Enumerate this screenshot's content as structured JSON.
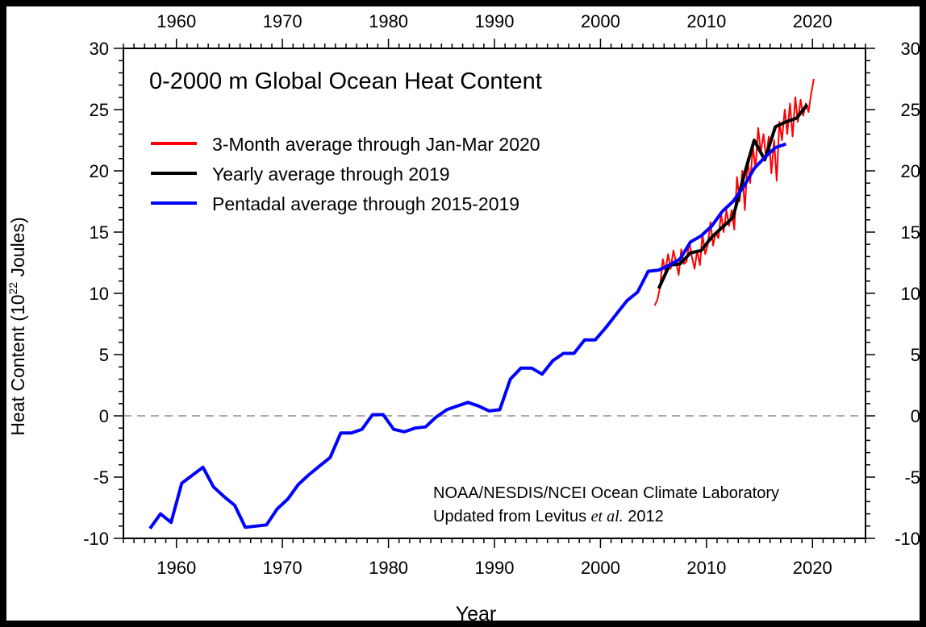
{
  "chart_data": {
    "type": "line",
    "title": "0-2000 m Global Ocean Heat Content",
    "xlabel": "Year",
    "ylabel": "Heat Content (10",
    "ylabel_sup": "22",
    "ylabel_end": " Joules)",
    "xlim": [
      1955,
      2025
    ],
    "ylim": [
      -10,
      30
    ],
    "xticks": [
      1960,
      1970,
      1980,
      1990,
      2000,
      2010,
      2020
    ],
    "yticks": [
      -10,
      -5,
      0,
      5,
      10,
      15,
      20,
      25,
      30
    ],
    "ytick_labels": [
      "-10",
      "-5",
      "0",
      "5",
      "10",
      "15",
      "20",
      "25",
      "30"
    ],
    "reference_line": {
      "y": 0,
      "style": "dashed",
      "color": "#aaaaaa"
    },
    "legend_placement": "top-left",
    "annotation": {
      "line1": "NOAA/NESDIS/NCEI Ocean Climate Laboratory",
      "line2_pre": "Updated from Levitus ",
      "line2_italic": "et al.",
      "line2_post": " 2012"
    },
    "series": [
      {
        "name": "3-Month average through Jan-Mar 2020",
        "color": "#ff0000",
        "x": [
          2005.12,
          2005.38,
          2005.62,
          2005.88,
          2006.12,
          2006.38,
          2006.62,
          2006.88,
          2007.12,
          2007.38,
          2007.62,
          2007.88,
          2008.12,
          2008.38,
          2008.62,
          2008.88,
          2009.12,
          2009.38,
          2009.62,
          2009.88,
          2010.12,
          2010.38,
          2010.62,
          2010.88,
          2011.12,
          2011.38,
          2011.62,
          2011.88,
          2012.12,
          2012.38,
          2012.62,
          2012.88,
          2013.12,
          2013.38,
          2013.62,
          2013.88,
          2014.12,
          2014.38,
          2014.62,
          2014.88,
          2015.12,
          2015.38,
          2015.62,
          2015.88,
          2016.12,
          2016.38,
          2016.62,
          2016.88,
          2017.12,
          2017.38,
          2017.62,
          2017.88,
          2018.12,
          2018.38,
          2018.62,
          2018.88,
          2019.12,
          2019.38,
          2019.62,
          2019.88,
          2020.12
        ],
        "y": [
          9.0,
          9.5,
          10.5,
          12.8,
          11.8,
          13.2,
          12.0,
          13.5,
          12.6,
          11.5,
          13.6,
          12.4,
          12.6,
          14.2,
          13.0,
          12.0,
          13.5,
          12.3,
          14.8,
          13.2,
          14.0,
          15.8,
          13.9,
          15.0,
          14.5,
          16.5,
          15.0,
          16.8,
          15.5,
          16.8,
          15.2,
          19.5,
          17.5,
          20.0,
          16.8,
          21.0,
          19.0,
          22.0,
          20.2,
          23.5,
          21.5,
          23.0,
          21.0,
          22.8,
          19.8,
          22.5,
          19.2,
          24.0,
          22.5,
          25.0,
          23.0,
          25.5,
          22.8,
          26.0,
          24.0,
          25.8,
          24.5,
          25.5,
          24.8,
          26.3,
          27.5
        ]
      },
      {
        "name": "Yearly average through 2019",
        "color": "#000000",
        "x": [
          2005.5,
          2006.5,
          2007.5,
          2008.5,
          2009.5,
          2010.5,
          2011.5,
          2012.5,
          2013.5,
          2014.5,
          2015.5,
          2016.5,
          2017.5,
          2018.5,
          2019.5
        ],
        "y": [
          10.4,
          12.3,
          12.4,
          13.3,
          13.5,
          14.6,
          15.4,
          16.2,
          19.5,
          22.5,
          20.9,
          23.6,
          24.0,
          24.3,
          25.4
        ]
      },
      {
        "name": "Pentadal average through 2015-2019",
        "color": "#0000ff",
        "x": [
          1957.5,
          1958.5,
          1959.5,
          1960.5,
          1962.5,
          1963.5,
          1964.5,
          1965.5,
          1966.5,
          1968.5,
          1969.5,
          1970.5,
          1971.5,
          1972.5,
          1973.5,
          1974.5,
          1975.5,
          1976.5,
          1977.5,
          1978.5,
          1979.5,
          1980.5,
          1981.5,
          1982.5,
          1983.5,
          1984.5,
          1985.5,
          1986.5,
          1987.5,
          1988.5,
          1989.5,
          1990.5,
          1991.5,
          1992.5,
          1993.5,
          1994.5,
          1995.5,
          1996.5,
          1997.5,
          1998.5,
          1999.5,
          2000.5,
          2001.5,
          2002.5,
          2003.5,
          2004.5,
          2005.5,
          2006.5,
          2007.5,
          2008.5,
          2009.5,
          2010.5,
          2011.5,
          2012.5,
          2013.5,
          2014.5,
          2015.5,
          2016.5,
          2017.5
        ],
        "y": [
          -9.2,
          -8.0,
          -8.7,
          -5.5,
          -4.2,
          -5.8,
          -6.6,
          -7.3,
          -9.1,
          -8.9,
          -7.6,
          -6.8,
          -5.6,
          -4.8,
          -4.1,
          -3.4,
          -1.4,
          -1.4,
          -1.1,
          0.1,
          0.1,
          -1.1,
          -1.3,
          -1.0,
          -0.9,
          -0.1,
          0.5,
          0.8,
          1.1,
          0.8,
          0.4,
          0.5,
          3.0,
          3.9,
          3.9,
          3.4,
          4.5,
          5.1,
          5.1,
          6.2,
          6.2,
          7.2,
          8.3,
          9.4,
          10.1,
          11.8,
          11.9,
          12.3,
          12.8,
          14.2,
          14.7,
          15.5,
          16.7,
          17.5,
          18.7,
          20.2,
          21.1,
          21.9,
          22.2
        ]
      }
    ]
  }
}
